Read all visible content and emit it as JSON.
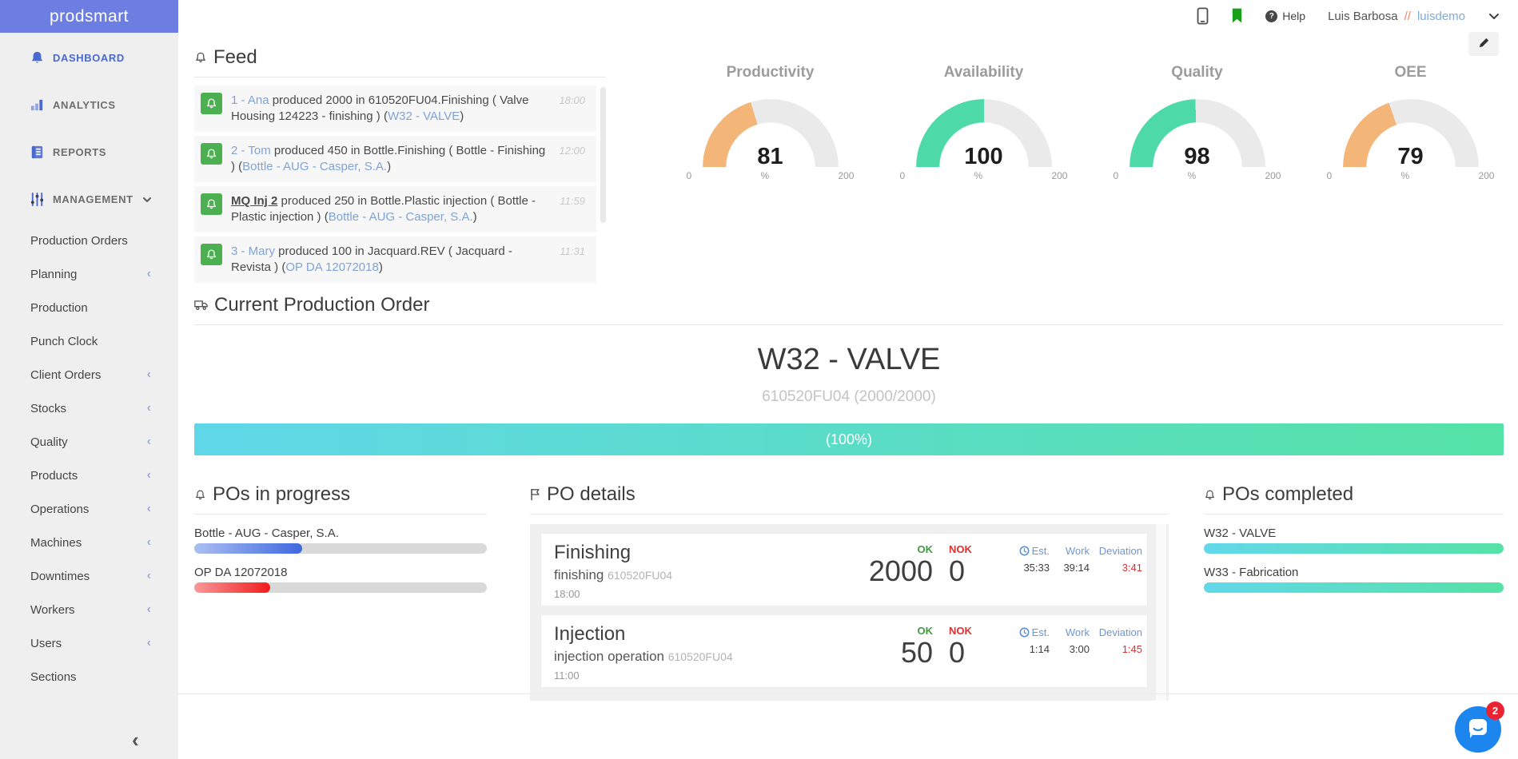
{
  "app": {
    "logo_text": "prodsmart"
  },
  "topbar": {
    "help_label": "Help",
    "user_name": "Luis Barbosa",
    "user_separator": "//",
    "user_account": "luisdemo"
  },
  "sidebar": {
    "main": [
      {
        "label": "DASHBOARD"
      },
      {
        "label": "ANALYTICS"
      },
      {
        "label": "REPORTS"
      },
      {
        "label": "MANAGEMENT"
      }
    ],
    "management": [
      {
        "label": "Production Orders"
      },
      {
        "label": "Planning"
      },
      {
        "label": "Production"
      },
      {
        "label": "Punch Clock"
      },
      {
        "label": "Client Orders"
      },
      {
        "label": "Stocks"
      },
      {
        "label": "Quality"
      },
      {
        "label": "Products"
      },
      {
        "label": "Operations"
      },
      {
        "label": "Machines"
      },
      {
        "label": "Downtimes"
      },
      {
        "label": "Workers"
      },
      {
        "label": "Users"
      },
      {
        "label": "Sections"
      }
    ]
  },
  "feed": {
    "title": "Feed",
    "items": [
      {
        "actor": "1 - Ana",
        "text": " produced 2000 in 610520FU04.Finishing ( Valve Housing 124223 - finishing ) (",
        "order": "W32 - VALVE",
        "close": ")",
        "time": "18:00"
      },
      {
        "actor": "2 - Tom",
        "text": " produced 450 in Bottle.Finishing ( Bottle - Finishing ) (",
        "order": "Bottle - AUG - Casper, S.A.",
        "close": ")",
        "time": "12:00"
      },
      {
        "actor": "MQ Inj 2",
        "text": " produced 250 in Bottle.Plastic injection ( Bottle - Plastic injection ) (",
        "order": "Bottle - AUG - Casper, S.A.",
        "close": ")",
        "time": "11:59"
      },
      {
        "actor": "3 - Mary",
        "text": " produced 100 in Jacquard.REV ( Jacquard - Revista ) (",
        "order": "OP DA 12072018",
        "close": ")",
        "time": "11:31"
      }
    ]
  },
  "gauges": {
    "scale": {
      "min": "0",
      "unit": "%",
      "max": "200"
    },
    "items": [
      {
        "title": "Productivity",
        "value": 81,
        "max": 200,
        "color": "#f4b678"
      },
      {
        "title": "Availability",
        "value": 100,
        "max": 200,
        "color": "#4ed9a9"
      },
      {
        "title": "Quality",
        "value": 98,
        "max": 200,
        "color": "#4ed9a9"
      },
      {
        "title": "OEE",
        "value": 79,
        "max": 200,
        "color": "#f4b678"
      }
    ]
  },
  "current_order": {
    "title": "Current Production Order",
    "name": "W32 - VALVE",
    "subtitle": "610520FU04 (2000/2000)",
    "progress_label": "(100%)",
    "percent": 100,
    "color_from": "#5fd7e8",
    "color_to": "#55e2a6"
  },
  "pos_in_progress": {
    "title": "POs in progress",
    "items": [
      {
        "label": "Bottle - AUG - Casper, S.A.",
        "percent": 37,
        "color_from": "#aabff2",
        "color_to": "#3f68df"
      },
      {
        "label": "OP DA 12072018",
        "percent": 26,
        "color_from": "#f89898",
        "color_to": "#f11c1c"
      }
    ]
  },
  "po_details": {
    "title": "PO details",
    "labels": {
      "ok": "OK",
      "nok": "NOK",
      "est": "Est.",
      "work": "Work",
      "deviation": "Deviation"
    },
    "cards": [
      {
        "name": "Finishing",
        "operation": "finishing",
        "code": "610520FU04",
        "time": "18:00",
        "ok": "2000",
        "nok": "0",
        "est": "35:33",
        "work": "39:14",
        "deviation": "3:41"
      },
      {
        "name": "Injection",
        "operation": "injection operation",
        "code": "610520FU04",
        "time": "11:00",
        "ok": "50",
        "nok": "0",
        "est": "1:14",
        "work": "3:00",
        "deviation": "1:45"
      }
    ]
  },
  "pos_completed": {
    "title": "POs completed",
    "items": [
      {
        "label": "W32 - VALVE",
        "percent": 100,
        "color_from": "#63d8ea",
        "color_to": "#55e2a6"
      },
      {
        "label": "W33 - Fabrication",
        "percent": 100,
        "color_from": "#63d8ea",
        "color_to": "#55e2a6"
      }
    ]
  },
  "chat": {
    "badge": "2"
  }
}
